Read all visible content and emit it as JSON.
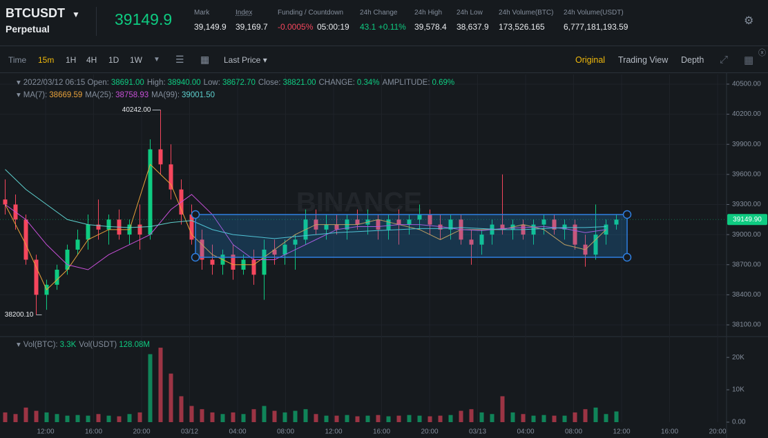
{
  "header": {
    "symbol": "BTCUSDT",
    "contract": "Perpetual",
    "last_price": "39149.9",
    "stats": [
      {
        "label": "Mark",
        "value": "39,149.9"
      },
      {
        "label": "Index",
        "value": "39,169.7"
      },
      {
        "label": "Funding / Countdown",
        "value": "-0.0005%",
        "extra": "05:00:19"
      },
      {
        "label": "24h Change",
        "value": "43.1 +0.11%"
      },
      {
        "label": "24h High",
        "value": "39,578.4"
      },
      {
        "label": "24h Low",
        "value": "38,637.9"
      },
      {
        "label": "24h Volume(BTC)",
        "value": "173,526.165"
      },
      {
        "label": "24h Volume(USDT)",
        "value": "6,777,181,193.59"
      }
    ]
  },
  "toolbar": {
    "intervals": [
      "Time",
      "15m",
      "1H",
      "4H",
      "1D",
      "1W"
    ],
    "price_type": "Last Price",
    "views": [
      "Original",
      "Trading View",
      "Depth"
    ]
  },
  "chart_data": {
    "type": "candlestick",
    "watermark": "BINANCE",
    "date": "2022/03/12 06:15",
    "info": [
      {
        "label": "Open:",
        "value": "38691.00"
      },
      {
        "label": "High:",
        "value": "38940.00"
      },
      {
        "label": "Low:",
        "value": "38672.70"
      },
      {
        "label": "Close:",
        "value": "38821.00"
      },
      {
        "label": "CHANGE:",
        "value": "0.34%"
      },
      {
        "label": "AMPLITUDE:",
        "value": "0.69%"
      }
    ],
    "up_color": "#0ecb81",
    "down_color": "#f6465d",
    "ylim": [
      37990,
      40596
    ],
    "yticks": [
      {
        "value": 38100,
        "label": "38100.00"
      },
      {
        "value": 38400,
        "label": "38400.00"
      },
      {
        "value": 38700,
        "label": "38700.00"
      },
      {
        "value": 39000,
        "label": "39000.00"
      },
      {
        "value": 39300,
        "label": "39300.00"
      },
      {
        "value": 39600,
        "label": "39600.00"
      },
      {
        "value": 39900,
        "label": "39900.00"
      },
      {
        "value": 40200,
        "label": "40200.00"
      },
      {
        "value": 40500,
        "label": "40500.00"
      }
    ],
    "last": {
      "value": 39149.9,
      "label": "39149.90"
    },
    "high_label": "40242.00",
    "low_label": "38200.10",
    "x_labels": [
      "12:00",
      "16:00",
      "20:00",
      "03/12",
      "04:00",
      "08:00",
      "12:00",
      "16:00",
      "20:00",
      "03/13",
      "04:00",
      "08:00",
      "12:00",
      "16:00",
      "20:00"
    ],
    "candles": [
      [
        39350,
        39550,
        39200,
        39300
      ],
      [
        39300,
        39400,
        39050,
        39150
      ],
      [
        39150,
        39200,
        38700,
        38750
      ],
      [
        38750,
        38800,
        38200.1,
        38400
      ],
      [
        38400,
        38550,
        38250,
        38500
      ],
      [
        38500,
        38700,
        38450,
        38650
      ],
      [
        38650,
        38900,
        38600,
        38850
      ],
      [
        38850,
        39050,
        38800,
        38950
      ],
      [
        38950,
        39200,
        38850,
        39100
      ],
      [
        39100,
        39350,
        38950,
        39050
      ],
      [
        39050,
        39200,
        38900,
        39150
      ],
      [
        39150,
        39250,
        38950,
        39000
      ],
      [
        39000,
        39150,
        38900,
        39100
      ],
      [
        39100,
        39300,
        38850,
        39000
      ],
      [
        39000,
        39950,
        38950,
        39850
      ],
      [
        39850,
        40242,
        39600,
        39700
      ],
      [
        39700,
        39900,
        39350,
        39450
      ],
      [
        39450,
        39550,
        39100,
        39200
      ],
      [
        39200,
        39300,
        38900,
        38950
      ],
      [
        38950,
        39050,
        38650,
        38750
      ],
      [
        38750,
        38900,
        38600,
        38700
      ],
      [
        38700,
        38850,
        38600,
        38800
      ],
      [
        38800,
        38900,
        38550,
        38650
      ],
      [
        38650,
        38800,
        38600,
        38750
      ],
      [
        38750,
        38850,
        38500,
        38600
      ],
      [
        38600,
        38950,
        38350,
        38850
      ],
      [
        38850,
        38950,
        38700,
        38800
      ],
      [
        38800,
        38950,
        38700,
        38900
      ],
      [
        38900,
        39000,
        38650,
        38950
      ],
      [
        38950,
        39250,
        38900,
        39150
      ],
      [
        39150,
        39250,
        39000,
        39050
      ],
      [
        39050,
        39200,
        38950,
        39100
      ],
      [
        39100,
        39200,
        39000,
        39050
      ],
      [
        39050,
        39200,
        38950,
        39150
      ],
      [
        39150,
        39250,
        39050,
        39100
      ],
      [
        39100,
        39250,
        39000,
        39150
      ],
      [
        39150,
        39200,
        38950,
        39050
      ],
      [
        39050,
        39200,
        38950,
        39150
      ],
      [
        39150,
        39250,
        38900,
        39100
      ],
      [
        39100,
        39200,
        39000,
        39150
      ],
      [
        39150,
        39300,
        39050,
        39200
      ],
      [
        39200,
        39250,
        39000,
        39100
      ],
      [
        39100,
        39200,
        38950,
        39050
      ],
      [
        39050,
        39200,
        38950,
        39150
      ],
      [
        39150,
        39200,
        38900,
        38950
      ],
      [
        38950,
        39050,
        38700,
        38900
      ],
      [
        38900,
        39050,
        38800,
        39000
      ],
      [
        39000,
        39150,
        38900,
        39100
      ],
      [
        39100,
        39600,
        39000,
        39050
      ],
      [
        39050,
        39150,
        38950,
        39100
      ],
      [
        39100,
        39150,
        38950,
        39000
      ],
      [
        39000,
        39150,
        38900,
        39100
      ],
      [
        39100,
        39200,
        39000,
        39150
      ],
      [
        39150,
        39200,
        39000,
        39050
      ],
      [
        39050,
        39150,
        38950,
        39100
      ],
      [
        39100,
        39150,
        38850,
        38900
      ],
      [
        38900,
        39000,
        38680,
        38800
      ],
      [
        38800,
        39300,
        38750,
        39000
      ],
      [
        39000,
        39150,
        38900,
        39100
      ],
      [
        39100,
        39200,
        39050,
        39150
      ]
    ],
    "ma": [
      {
        "name": "MA(7):",
        "value": "38669.59",
        "color": "#e9a23b",
        "values": [
          39300,
          38900,
          38450,
          38650,
          38950,
          39050,
          39050,
          39700,
          39500,
          39000,
          38800,
          38700,
          38700,
          38850,
          39000,
          39100,
          39100,
          39100,
          39150,
          39100,
          39050,
          38950,
          39050,
          39050,
          39050,
          39100,
          39050,
          38900,
          38850,
          39050
        ]
      },
      {
        "name": "MA(25):",
        "value": "38758.93",
        "color": "#c84fd8",
        "values": [
          39300,
          39150,
          38900,
          38700,
          38650,
          38800,
          38900,
          39000,
          39250,
          39400,
          39200,
          38900,
          38750,
          38750,
          38850,
          38950,
          39050,
          39080,
          39080,
          39100,
          39100,
          39080,
          39050,
          39040,
          39060,
          39070,
          39080,
          39060,
          39020,
          39050
        ]
      },
      {
        "name": "MA(99):",
        "value": "39001.50",
        "color": "#5ed1cf",
        "values": [
          39650,
          39450,
          39300,
          39150,
          39100,
          39080,
          39070,
          39080,
          39120,
          39140,
          39050,
          39000,
          38980,
          38960,
          38980,
          39000,
          39020,
          39030,
          39040,
          39050,
          39060,
          39060,
          39070,
          39060,
          39050,
          39050,
          39060,
          39070,
          39070,
          39080
        ]
      }
    ],
    "volume": {
      "legend": [
        {
          "label": "Vol(BTC):",
          "value": "3.3K"
        },
        {
          "label": "Vol(USDT)",
          "value": "128.08M"
        }
      ],
      "ylim": [
        0,
        26000
      ],
      "yticks": [
        {
          "value": 0,
          "label": "0.00"
        },
        {
          "value": 10000,
          "label": "10K"
        },
        {
          "value": 20000,
          "label": "20K"
        }
      ],
      "values": [
        3000,
        2500,
        4500,
        3500,
        3000,
        2500,
        2000,
        2200,
        2000,
        2500,
        2000,
        1800,
        2500,
        3000,
        21000,
        23000,
        15000,
        8000,
        5000,
        4000,
        3000,
        2500,
        3000,
        2500,
        4000,
        5000,
        3500,
        3000,
        3500,
        4000,
        2500,
        2000,
        2000,
        2200,
        1800,
        2000,
        2200,
        1800,
        2000,
        2200,
        2000,
        1800,
        2000,
        2200,
        3500,
        4000,
        3000,
        2500,
        8000,
        3000,
        2500,
        2000,
        2200,
        2000,
        2000,
        3000,
        4000,
        4500,
        2500,
        3300
      ]
    }
  }
}
